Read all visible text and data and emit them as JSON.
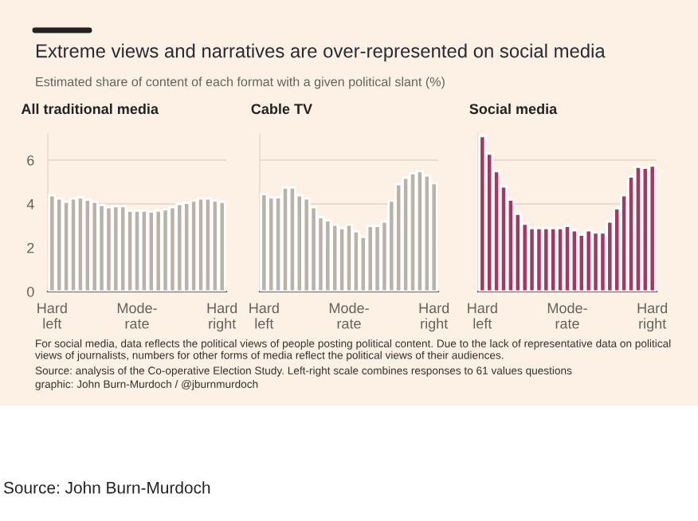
{
  "chart_data": [
    {
      "type": "bar",
      "title": "All traditional media",
      "categories": [
        "Hard\nleft",
        null,
        null,
        null,
        null,
        null,
        null,
        null,
        null,
        null,
        null,
        null,
        "Mode-\nrate",
        null,
        null,
        null,
        null,
        null,
        null,
        null,
        null,
        null,
        null,
        null,
        "Hard\nright"
      ],
      "values": [
        4.4,
        4.25,
        4.1,
        4.25,
        4.3,
        4.2,
        4.1,
        3.95,
        3.85,
        3.9,
        3.9,
        3.7,
        3.7,
        3.7,
        3.65,
        3.7,
        3.75,
        3.85,
        4.0,
        4.05,
        4.15,
        4.25,
        4.25,
        4.15,
        4.1
      ],
      "color": "#bab1a9",
      "ylim": [
        0,
        7.2
      ],
      "yticks": [
        0,
        2,
        4,
        6
      ],
      "grid": "y",
      "annotations": [
        "Extreme views and narratives are over-represented on social media",
        "Estimated share of content of each format with a given political slant (%)"
      ]
    },
    {
      "type": "bar",
      "title": "Cable TV",
      "categories": [
        "Hard\nleft",
        null,
        null,
        null,
        null,
        null,
        null,
        null,
        null,
        null,
        null,
        null,
        "Mode-\nrate",
        null,
        null,
        null,
        null,
        null,
        null,
        null,
        null,
        null,
        null,
        null,
        "Hard\nright"
      ],
      "values": [
        4.45,
        4.3,
        4.3,
        4.75,
        4.75,
        4.4,
        4.25,
        3.85,
        3.4,
        3.25,
        3.05,
        2.9,
        3.05,
        2.75,
        2.5,
        3.0,
        3.0,
        3.2,
        4.15,
        4.9,
        5.2,
        5.4,
        5.5,
        5.3,
        4.95
      ],
      "color": "#bab1a9",
      "ylim": [
        0,
        7.2
      ],
      "yticks": [
        0,
        2,
        4,
        6
      ],
      "grid": "y",
      "tick_labels": "x"
    },
    {
      "type": "bar",
      "title": "Social media",
      "categories": [
        "Hard\nleft",
        null,
        null,
        null,
        null,
        null,
        null,
        null,
        null,
        null,
        null,
        null,
        "Mode-\nrate",
        null,
        null,
        null,
        null,
        null,
        null,
        null,
        null,
        null,
        null,
        null,
        "Hard\nright"
      ],
      "values": [
        7.1,
        6.3,
        5.5,
        4.8,
        4.2,
        3.55,
        3.1,
        2.9,
        2.9,
        2.9,
        2.9,
        2.9,
        3.0,
        2.8,
        2.6,
        2.8,
        2.7,
        2.7,
        3.2,
        3.8,
        4.4,
        5.25,
        5.7,
        5.65,
        5.75
      ],
      "color": "#a8365e",
      "ylim": [
        0,
        7.2
      ],
      "yticks": [
        0,
        2,
        4,
        6
      ],
      "grid": "y",
      "tick_labels": "x",
      "annotations": [
        "For social media, data reflects the political views of people posting political content. Due to the lack of representative data on political views of journalists, numbers for other forms of media reflect the political views of their audiences.",
        "Source: analysis of the Co-operative Election Study. Left-right scale combines responses to 61 values questions",
        "graphic: John Burn-Murdoch / @jburnmurdoch",
        "Source: John Burn-Murdoch"
      ]
    }
  ]
}
